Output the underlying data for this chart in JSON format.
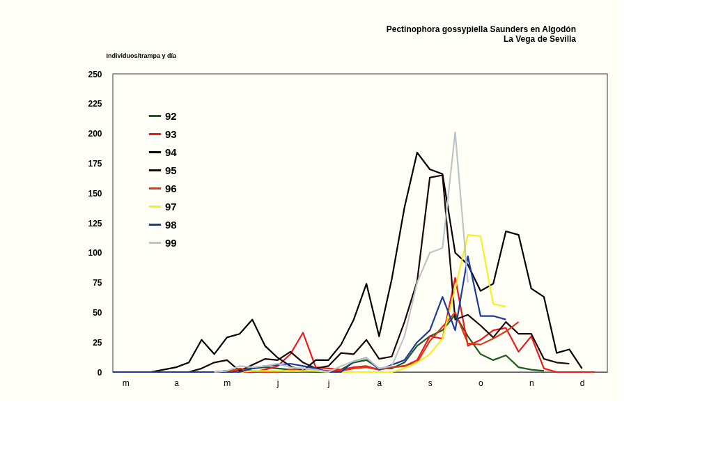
{
  "chart_data": {
    "type": "line",
    "title": "Pectinophora gossypiella Saunders en Algodón",
    "subtitle": "La Vega  de Sevilla",
    "ylabel": "Individuos/trampa y día",
    "categories": [
      null,
      "m",
      null,
      null,
      null,
      "a",
      null,
      null,
      null,
      "m",
      null,
      null,
      null,
      "j",
      null,
      null,
      null,
      "j",
      null,
      null,
      null,
      "a",
      null,
      null,
      null,
      "s",
      null,
      null,
      null,
      "o",
      null,
      null,
      null,
      "n",
      null,
      null,
      null,
      "d",
      null,
      null
    ],
    "ylim": [
      0,
      250
    ],
    "yticks": [
      0,
      25,
      50,
      75,
      100,
      125,
      150,
      175,
      200,
      225,
      250
    ],
    "grid": false,
    "legend": "top left",
    "line_style": "solid",
    "series": [
      {
        "name": "92",
        "color": "#1f5a1f",
        "values": [
          null,
          null,
          null,
          null,
          null,
          null,
          null,
          null,
          0,
          1,
          2,
          3,
          4,
          3,
          2,
          1,
          0,
          0,
          2,
          8,
          10,
          3,
          3,
          8,
          22,
          30,
          35,
          48,
          30,
          15,
          10,
          14,
          4,
          2,
          1,
          null,
          null,
          null,
          null,
          null
        ]
      },
      {
        "name": "93",
        "color": "#f01818",
        "values": [
          null,
          null,
          null,
          null,
          null,
          null,
          null,
          null,
          0,
          1,
          0,
          0,
          2,
          5,
          15,
          33,
          4,
          3,
          2,
          4,
          5,
          2,
          4,
          5,
          10,
          30,
          28,
          79,
          22,
          27,
          35,
          37,
          17,
          30,
          3,
          0,
          0,
          0,
          0,
          null
        ]
      },
      {
        "name": "94",
        "color": "#000000",
        "values": [
          null,
          null,
          null,
          0,
          2,
          4,
          8,
          27,
          15,
          29,
          32,
          44,
          22,
          12,
          5,
          1,
          10,
          10,
          23,
          44,
          74,
          30,
          78,
          138,
          184,
          170,
          166,
          100,
          90,
          68,
          74,
          118,
          115,
          70,
          63,
          16,
          19,
          3,
          null,
          null
        ]
      },
      {
        "name": "95",
        "color": "#1a0808",
        "values": [
          null,
          null,
          null,
          null,
          null,
          null,
          0,
          3,
          8,
          10,
          1,
          6,
          11,
          10,
          17,
          8,
          3,
          5,
          16,
          15,
          27,
          11,
          13,
          42,
          76,
          163,
          165,
          44,
          48,
          39,
          29,
          42,
          32,
          32,
          11,
          8,
          7,
          null,
          null,
          null
        ]
      },
      {
        "name": "96",
        "color": "#d83a10",
        "values": [
          null,
          null,
          null,
          null,
          null,
          null,
          null,
          null,
          null,
          0,
          3,
          1,
          0,
          0,
          2,
          3,
          2,
          1,
          1,
          3,
          4,
          2,
          4,
          5,
          8,
          26,
          38,
          50,
          24,
          23,
          28,
          34,
          42,
          null,
          null,
          null,
          null,
          null,
          null,
          null
        ]
      },
      {
        "name": "97",
        "color": "#f5f020",
        "values": [
          null,
          null,
          null,
          null,
          null,
          null,
          null,
          null,
          null,
          null,
          0,
          1,
          1,
          1,
          1,
          1,
          1,
          0,
          0,
          0,
          0,
          0,
          0,
          3,
          8,
          15,
          28,
          70,
          115,
          114,
          57,
          55,
          null,
          null,
          null,
          null,
          null,
          null,
          null,
          null
        ]
      },
      {
        "name": "98",
        "color": "#1a3a9c",
        "values": [
          0,
          0,
          0,
          0,
          0,
          0,
          0,
          0,
          0,
          0,
          0,
          3,
          5,
          6,
          7,
          5,
          3,
          0,
          0,
          9,
          12,
          2,
          6,
          10,
          25,
          35,
          63,
          35,
          97,
          47,
          47,
          44,
          null,
          null,
          null,
          null,
          null,
          null,
          null,
          null
        ]
      },
      {
        "name": "99",
        "color": "#bcc6c6",
        "values": [
          null,
          null,
          null,
          null,
          null,
          null,
          null,
          null,
          0,
          1,
          5,
          4,
          5,
          7,
          4,
          3,
          2,
          0,
          5,
          9,
          12,
          3,
          5,
          30,
          75,
          100,
          104,
          201,
          75,
          null,
          null,
          null,
          null,
          null,
          null,
          null,
          null,
          null,
          null,
          null
        ]
      }
    ]
  }
}
